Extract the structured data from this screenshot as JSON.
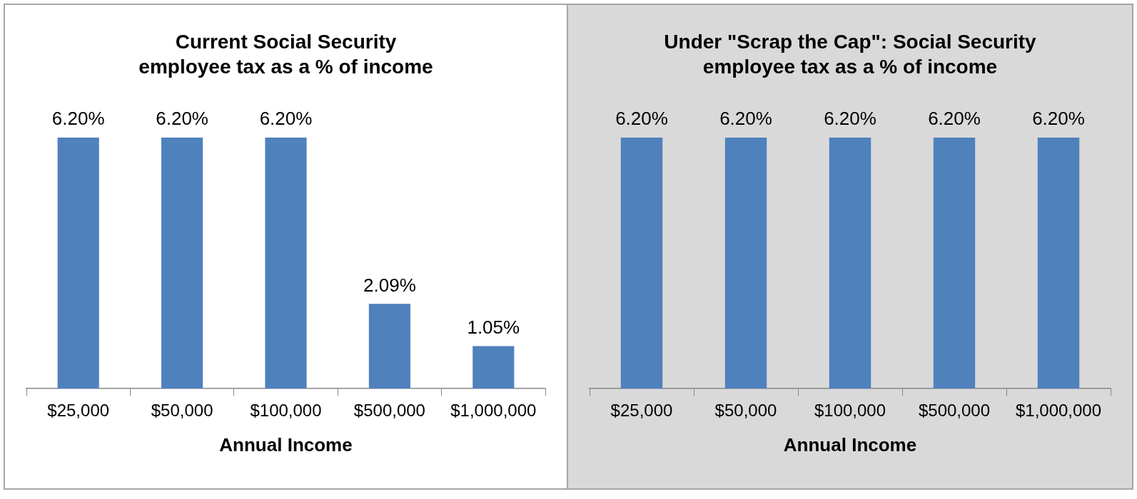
{
  "chart_data": [
    {
      "type": "bar",
      "title": [
        "Current Social Security",
        "employee tax as a % of income"
      ],
      "x_label": "Annual Income",
      "categories": [
        "$25,000",
        "$50,000",
        "$100,000",
        "$500,000",
        "$1,000,000"
      ],
      "values": [
        6.2,
        6.2,
        6.2,
        2.09,
        1.05
      ],
      "value_labels": [
        "6.20%",
        "6.20%",
        "6.20%",
        "2.09%",
        "1.05%"
      ],
      "color": "#4f81bd",
      "ylim": [
        0,
        6.2
      ],
      "grid": false,
      "data_labels": true,
      "tick_labels": "x"
    },
    {
      "type": "bar",
      "title": [
        "Under \"Scrap the Cap\": Social Security",
        "employee tax as a % of income"
      ],
      "x_label": "Annual Income",
      "categories": [
        "$25,000",
        "$50,000",
        "$100,000",
        "$500,000",
        "$1,000,000"
      ],
      "values": [
        6.2,
        6.2,
        6.2,
        6.2,
        6.2
      ],
      "value_labels": [
        "6.20%",
        "6.20%",
        "6.20%",
        "6.20%",
        "6.20%"
      ],
      "color": "#4f81bd",
      "ylim": [
        0,
        6.2
      ],
      "grid": false,
      "data_labels": true,
      "tick_labels": "x"
    }
  ]
}
